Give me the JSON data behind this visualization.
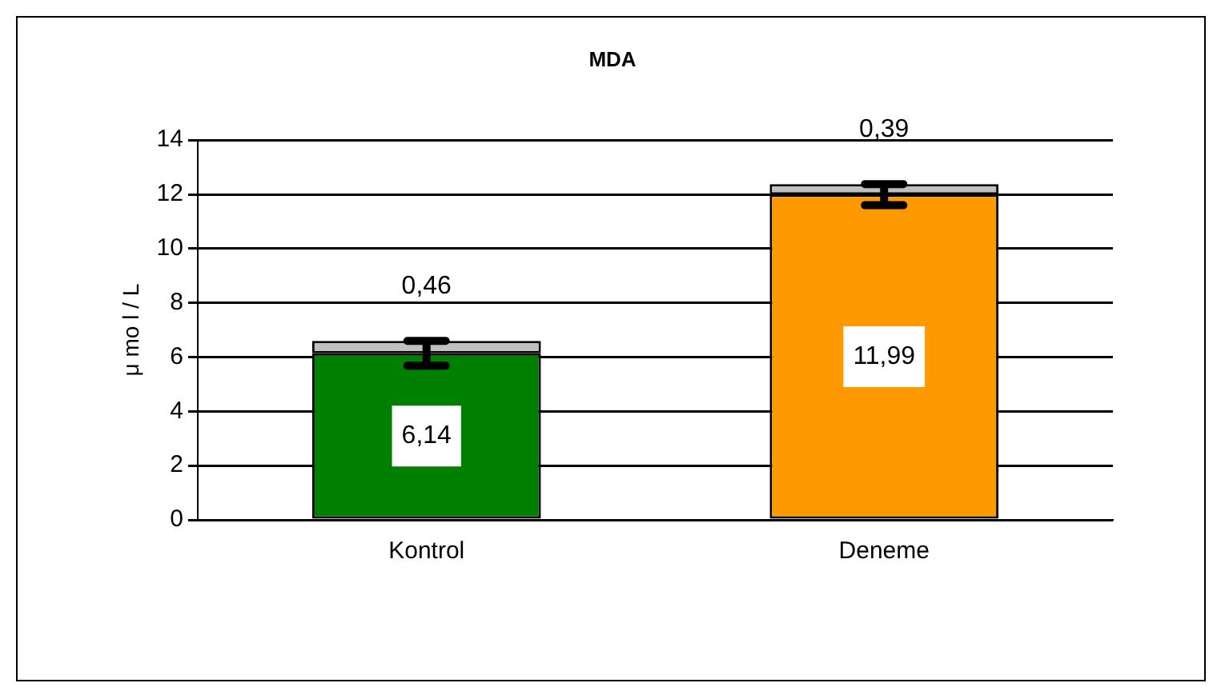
{
  "chart_data": {
    "type": "bar",
    "title": "MDA",
    "ylabel": "μ mo l / L",
    "categories": [
      "Kontrol",
      "Deneme"
    ],
    "stacked": true,
    "series": [
      {
        "colors": [
          "#008000",
          "#ff9900"
        ],
        "values": [
          6.14,
          11.99
        ],
        "errors": [
          0.46,
          0.39
        ],
        "value_labels": [
          "6,14",
          "11,99"
        ]
      },
      {
        "color": "#c0c0c0",
        "values": [
          0.46,
          0.39
        ],
        "value_labels": [
          "0,46",
          "0,39"
        ]
      }
    ],
    "ylim": [
      0,
      14
    ],
    "yticks": [
      0,
      2,
      4,
      6,
      8,
      10,
      12,
      14
    ],
    "grid": "y",
    "legend": false
  }
}
